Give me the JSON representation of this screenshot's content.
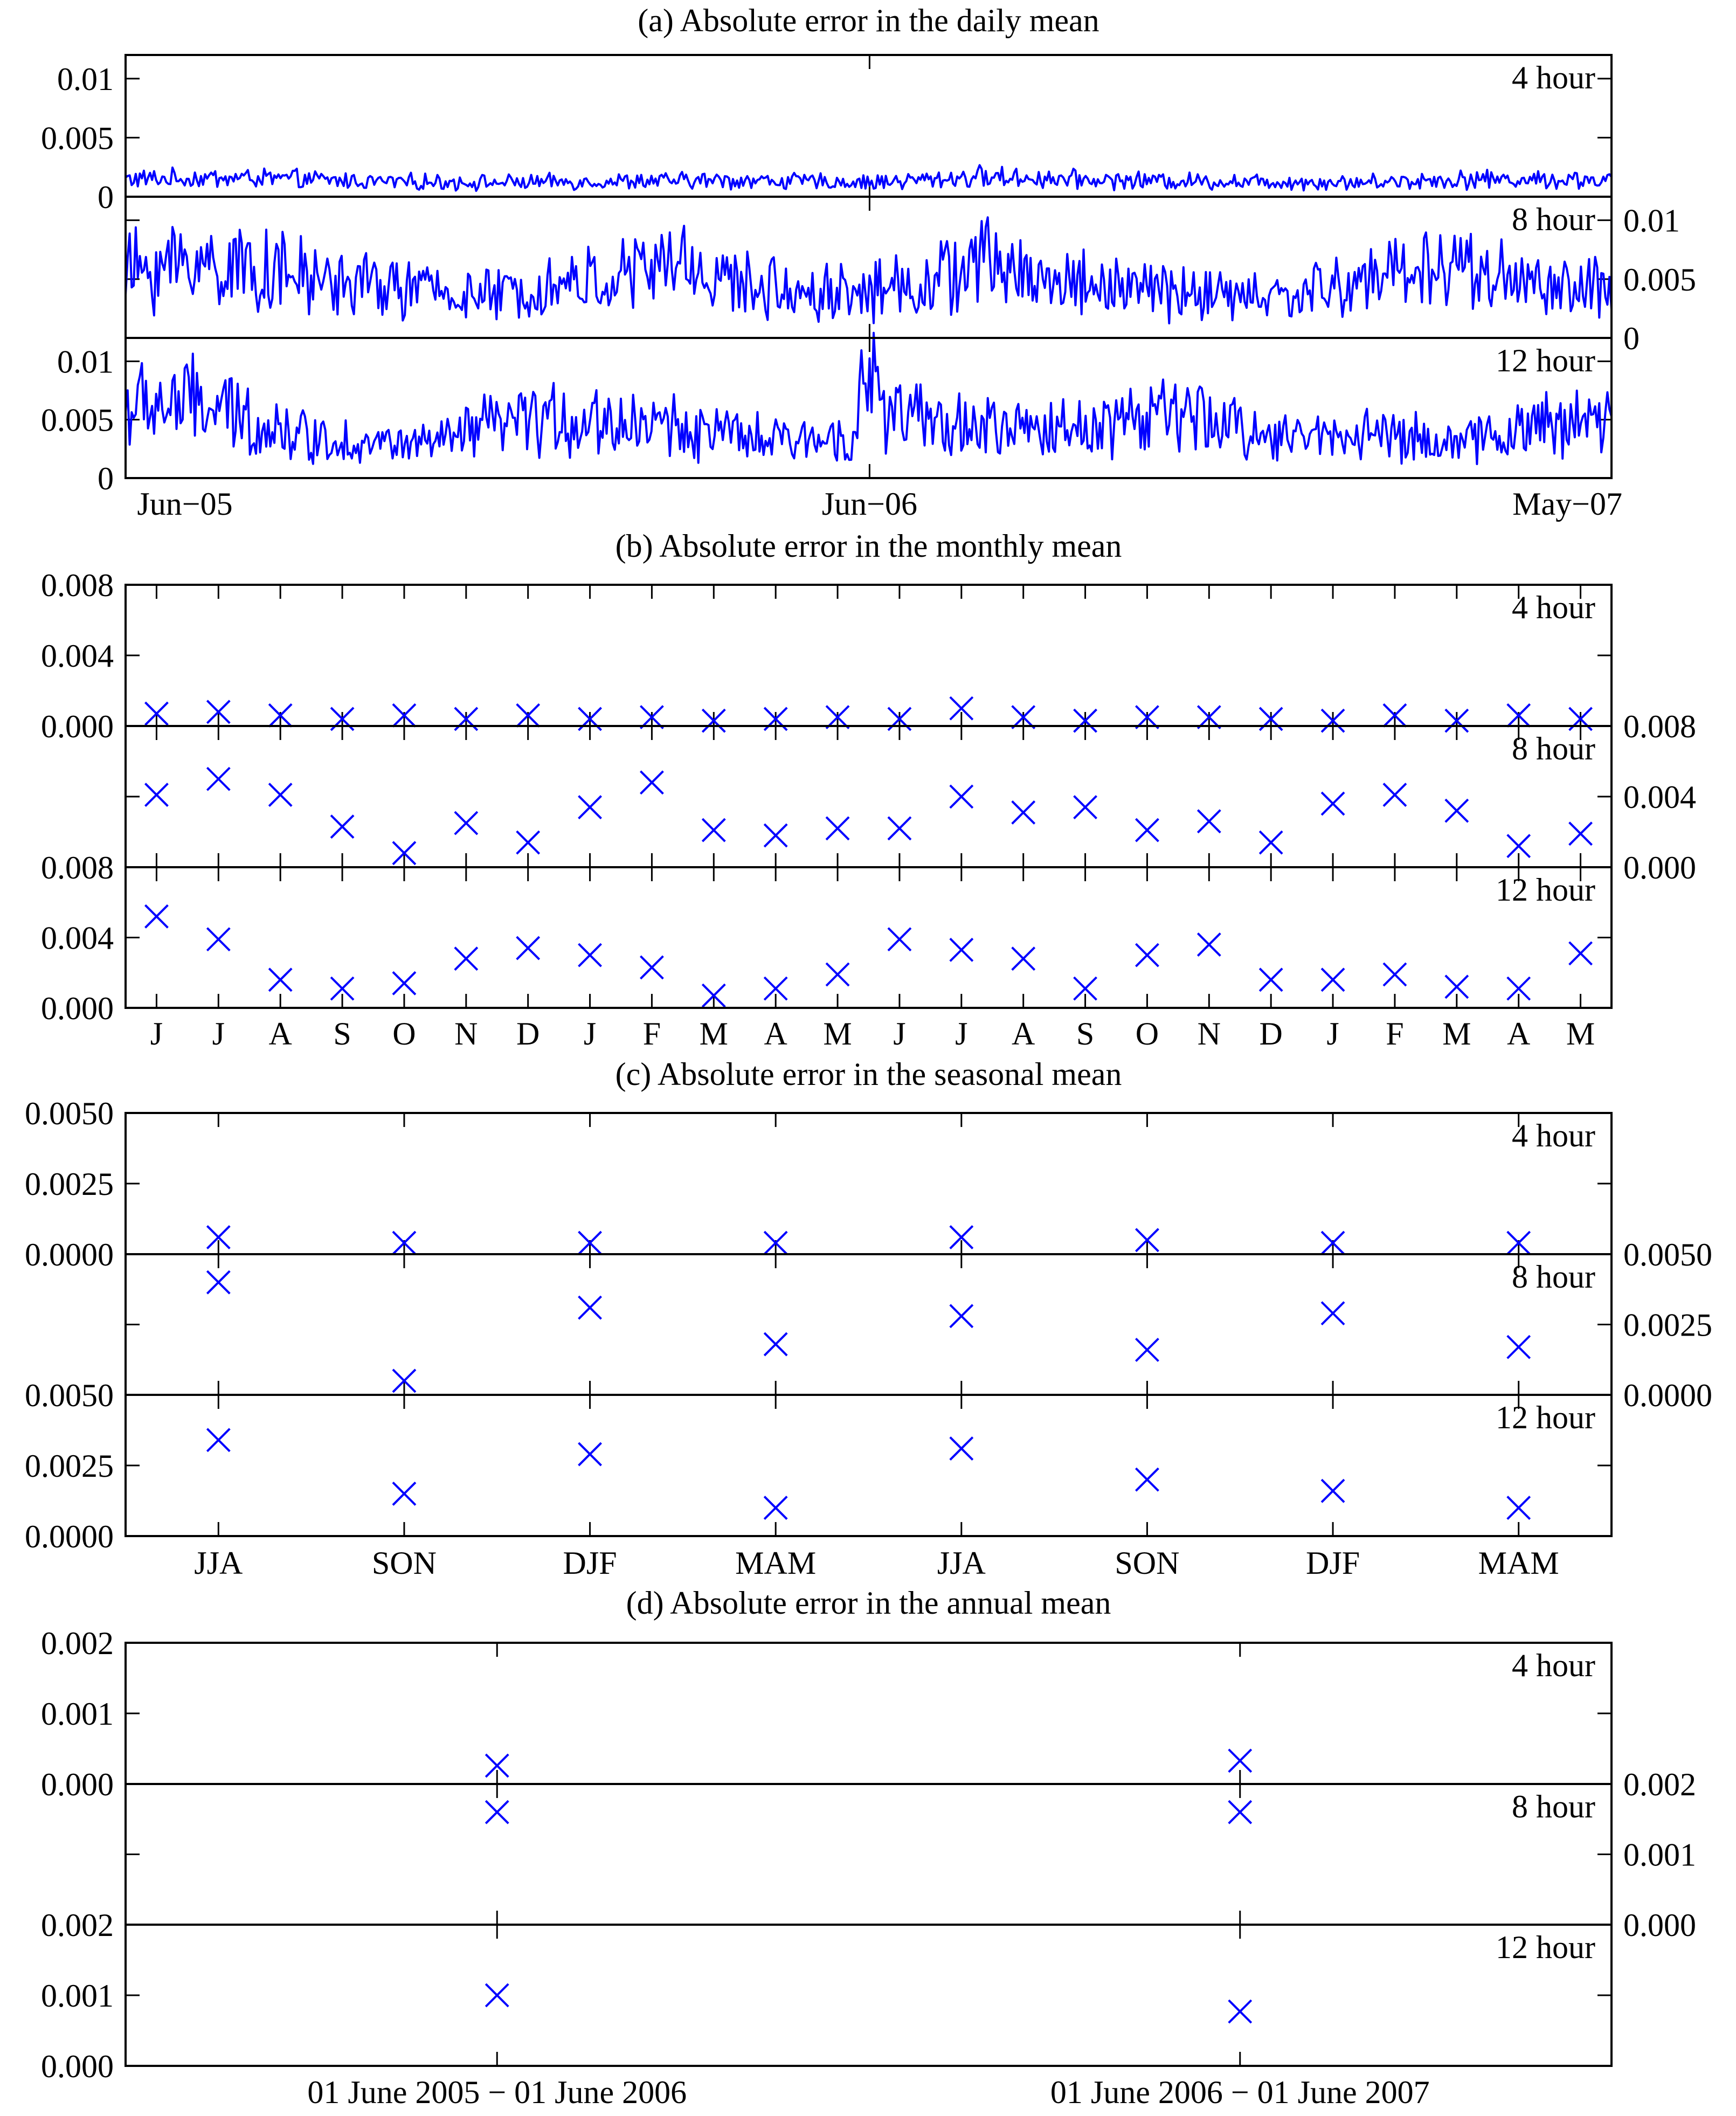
{
  "chart_data": [
    {
      "panel": "a",
      "type": "line",
      "title": "(a) Absolute error in the daily mean",
      "x_tick_labels": [
        "Jun−05",
        "Jun−06",
        "May−07"
      ],
      "x_tick_positions_days": [
        0,
        365,
        729
      ],
      "n_days": 730,
      "series": [
        {
          "name": "4 hour",
          "ylim": [
            0,
            0.012
          ],
          "yticks": [
            "0",
            "0.005",
            "0.01"
          ],
          "ytick_values": [
            0,
            0.005,
            0.01
          ],
          "axis_side": "left",
          "approx_profile_days": [
            0,
            60,
            120,
            180,
            240,
            300,
            365,
            420,
            480,
            540,
            600,
            660,
            729
          ],
          "approx_profile_values": [
            0.0015,
            0.0016,
            0.0013,
            0.0012,
            0.0013,
            0.0014,
            0.0012,
            0.0017,
            0.0014,
            0.0013,
            0.0012,
            0.0015,
            0.0014
          ]
        },
        {
          "name": "8 hour",
          "ylim": [
            0,
            0.012
          ],
          "yticks": [
            "0",
            "0.005",
            "0.01"
          ],
          "ytick_values": [
            0,
            0.005,
            0.01
          ],
          "axis_side": "right",
          "approx_profile_days": [
            0,
            30,
            60,
            90,
            120,
            150,
            180,
            210,
            240,
            270,
            300,
            330,
            365,
            400,
            420,
            450,
            480,
            510,
            540,
            570,
            600,
            630,
            660,
            690,
            729
          ],
          "approx_profile_values": [
            0.0055,
            0.0065,
            0.006,
            0.005,
            0.0045,
            0.004,
            0.0035,
            0.0045,
            0.005,
            0.0065,
            0.0045,
            0.004,
            0.004,
            0.005,
            0.0065,
            0.005,
            0.0045,
            0.004,
            0.0035,
            0.0035,
            0.0045,
            0.006,
            0.006,
            0.0045,
            0.004
          ]
        },
        {
          "name": "12 hour",
          "ylim": [
            0,
            0.012
          ],
          "yticks": [
            "0",
            "0.005",
            "0.01"
          ],
          "ytick_values": [
            0,
            0.005,
            0.01
          ],
          "axis_side": "left",
          "approx_profile_days": [
            0,
            30,
            60,
            90,
            120,
            150,
            180,
            210,
            240,
            270,
            300,
            330,
            355,
            365,
            375,
            400,
            450,
            480,
            510,
            540,
            570,
            600,
            630,
            660,
            690,
            729
          ],
          "approx_profile_values": [
            0.006,
            0.0065,
            0.005,
            0.0035,
            0.003,
            0.0028,
            0.0045,
            0.005,
            0.0048,
            0.0045,
            0.0035,
            0.003,
            0.004,
            0.0085,
            0.0055,
            0.0045,
            0.004,
            0.0048,
            0.0055,
            0.0045,
            0.0035,
            0.004,
            0.0035,
            0.003,
            0.0045,
            0.005
          ]
        }
      ]
    },
    {
      "panel": "b",
      "type": "scatter",
      "title": "(b) Absolute error in the monthly mean",
      "categories": [
        "J",
        "J",
        "A",
        "S",
        "O",
        "N",
        "D",
        "J",
        "F",
        "M",
        "A",
        "M",
        "J",
        "J",
        "A",
        "S",
        "O",
        "N",
        "D",
        "J",
        "F",
        "M",
        "A",
        "M"
      ],
      "series": [
        {
          "name": "4 hour",
          "ylim": [
            0,
            0.008
          ],
          "yticks": [
            "0.000",
            "0.004",
            "0.008"
          ],
          "ytick_values": [
            0,
            0.004,
            0.008
          ],
          "axis_side": "left",
          "values": [
            0.0007,
            0.0008,
            0.0006,
            0.0004,
            0.0006,
            0.0004,
            0.0006,
            0.0004,
            0.0005,
            0.0003,
            0.0004,
            0.0005,
            0.0004,
            0.001,
            0.0005,
            0.0003,
            0.0005,
            0.0005,
            0.0004,
            0.0003,
            0.0006,
            0.0003,
            0.0006,
            0.0004
          ]
        },
        {
          "name": "8 hour",
          "ylim": [
            0,
            0.008
          ],
          "yticks": [
            "0.000",
            "0.004",
            "0.008"
          ],
          "ytick_values": [
            0,
            0.004,
            0.008
          ],
          "axis_side": "right",
          "values": [
            0.0041,
            0.005,
            0.0041,
            0.0023,
            0.0008,
            0.0025,
            0.0014,
            0.0034,
            0.0048,
            0.0021,
            0.0018,
            0.0022,
            0.0022,
            0.004,
            0.0031,
            0.0034,
            0.0021,
            0.0026,
            0.0014,
            0.0036,
            0.0041,
            0.0032,
            0.0012,
            0.0019
          ]
        },
        {
          "name": "12 hour",
          "ylim": [
            0,
            0.008
          ],
          "yticks": [
            "0.000",
            "0.004",
            "0.008"
          ],
          "ytick_values": [
            0,
            0.004,
            0.008
          ],
          "axis_side": "left",
          "values": [
            0.0052,
            0.0039,
            0.0016,
            0.0011,
            0.0014,
            0.0028,
            0.0034,
            0.003,
            0.0023,
            0.0007,
            0.0011,
            0.0019,
            0.0039,
            0.0033,
            0.0028,
            0.0011,
            0.003,
            0.0036,
            0.0016,
            0.0016,
            0.0019,
            0.0012,
            0.0011,
            0.0031
          ]
        }
      ]
    },
    {
      "panel": "c",
      "type": "scatter",
      "title": "(c) Absolute error in the seasonal mean",
      "categories": [
        "JJA",
        "SON",
        "DJF",
        "MAM",
        "JJA",
        "SON",
        "DJF",
        "MAM"
      ],
      "series": [
        {
          "name": "4 hour",
          "ylim": [
            0,
            0.005
          ],
          "yticks": [
            "0.0000",
            "0.0025",
            "0.0050"
          ],
          "ytick_values": [
            0,
            0.0025,
            0.005
          ],
          "axis_side": "left",
          "values": [
            0.0006,
            0.0004,
            0.0004,
            0.0004,
            0.0006,
            0.0005,
            0.0004,
            0.0004
          ]
        },
        {
          "name": "8 hour",
          "ylim": [
            0,
            0.005
          ],
          "yticks": [
            "0.0000",
            "0.0025",
            "0.0050"
          ],
          "ytick_values": [
            0,
            0.0025,
            0.005
          ],
          "axis_side": "right",
          "values": [
            0.004,
            0.0005,
            0.0031,
            0.0018,
            0.0028,
            0.0016,
            0.0029,
            0.0017
          ]
        },
        {
          "name": "12 hour",
          "ylim": [
            0,
            0.005
          ],
          "yticks": [
            "0.0000",
            "0.0025",
            "0.0050"
          ],
          "ytick_values": [
            0,
            0.0025,
            0.005
          ],
          "axis_side": "left",
          "values": [
            0.0034,
            0.0015,
            0.0029,
            0.001,
            0.0031,
            0.002,
            0.0016,
            0.001
          ]
        }
      ]
    },
    {
      "panel": "d",
      "type": "scatter",
      "title": "(d) Absolute error in the annual mean",
      "categories": [
        "01 June 2005 − 01 June 2006",
        "01 June 2006 − 01 June 2007"
      ],
      "series": [
        {
          "name": "4 hour",
          "ylim": [
            0,
            0.002
          ],
          "yticks": [
            "0.000",
            "0.001",
            "0.002"
          ],
          "ytick_values": [
            0,
            0.001,
            0.002
          ],
          "axis_side": "left",
          "values": [
            0.00026,
            0.00033
          ]
        },
        {
          "name": "8 hour",
          "ylim": [
            0,
            0.002
          ],
          "yticks": [
            "0.000",
            "0.001",
            "0.002"
          ],
          "ytick_values": [
            0,
            0.001,
            0.002
          ],
          "axis_side": "right",
          "values": [
            0.0016,
            0.0016
          ]
        },
        {
          "name": "12 hour",
          "ylim": [
            0,
            0.002
          ],
          "yticks": [
            "0.000",
            "0.001",
            "0.002"
          ],
          "ytick_values": [
            0,
            0.001,
            0.002
          ],
          "axis_side": "left",
          "values": [
            0.001,
            0.00077
          ]
        }
      ]
    }
  ],
  "colors": {
    "series": "#0000ff",
    "axes": "#000000",
    "background": "#ffffff"
  }
}
